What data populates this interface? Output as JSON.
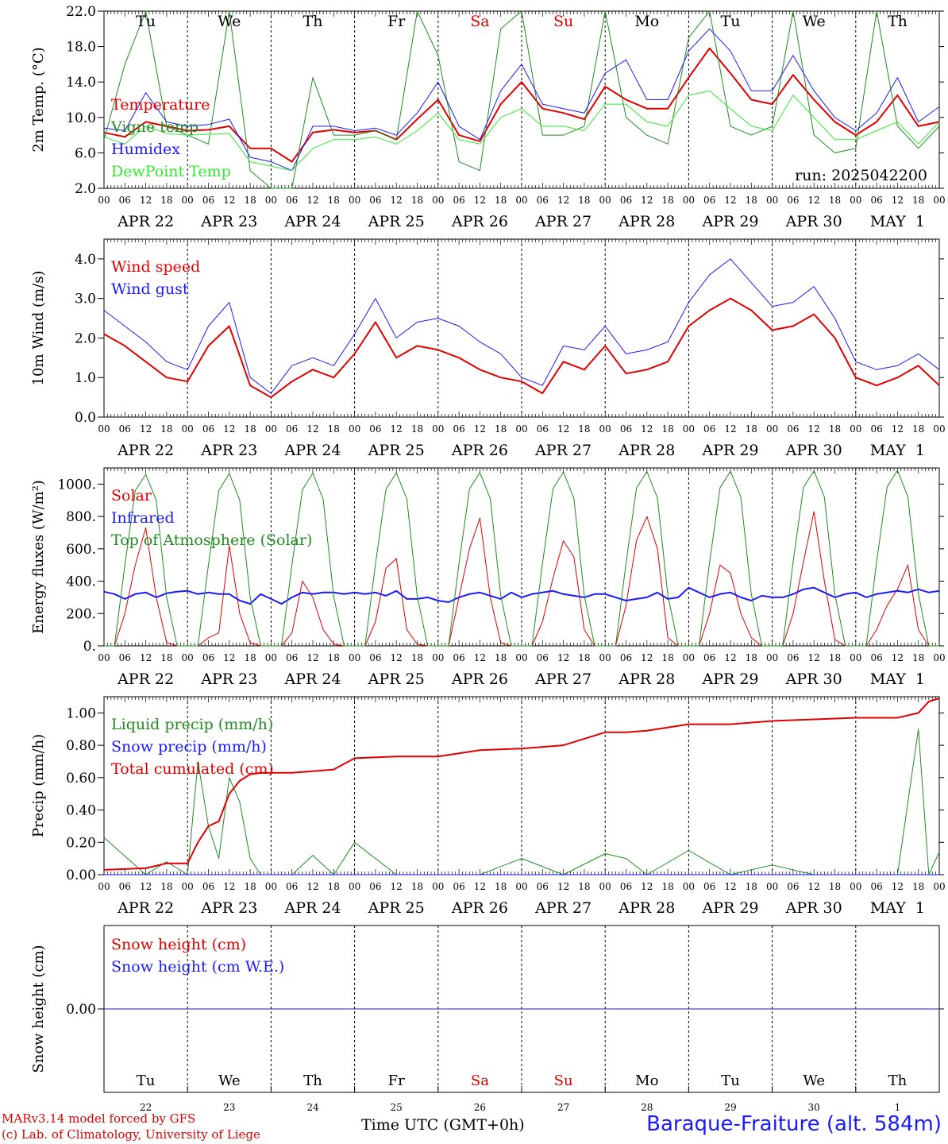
{
  "colors": {
    "red": "#e00000",
    "green": "#228b22",
    "blue": "#1a1aff",
    "lightgreen": "#33e833",
    "black": "#000000"
  },
  "hour_ticks": [
    "00",
    "06",
    "12",
    "18"
  ],
  "date_labels": [
    "APR 22",
    "APR 23",
    "APR 24",
    "APR 25",
    "APR 26",
    "APR 27",
    "APR 28",
    "APR 29",
    "APR 30",
    "MAY  1"
  ],
  "weekdays": [
    {
      "label": "Tu",
      "weekend": false
    },
    {
      "label": "We",
      "weekend": false
    },
    {
      "label": "Th",
      "weekend": false
    },
    {
      "label": "Fr",
      "weekend": false
    },
    {
      "label": "Sa",
      "weekend": true
    },
    {
      "label": "Su",
      "weekend": true
    },
    {
      "label": "Mo",
      "weekend": false
    },
    {
      "label": "Tu",
      "weekend": false
    },
    {
      "label": "We",
      "weekend": false
    },
    {
      "label": "Th",
      "weekend": false
    }
  ],
  "day_numbers": [
    "22",
    "23",
    "24",
    "25",
    "26",
    "27",
    "28",
    "29",
    "30",
    "1"
  ],
  "footer": {
    "credit_line1": "MARv3.14 model forced by GFS",
    "credit_line2": "(c) Lab. of Climatology, University of Liege",
    "time_label": "Time UTC (GMT+0h)",
    "station": "Baraque-Fraiture (alt. 584m)"
  },
  "chart_data": [
    {
      "type": "line",
      "ylabel": "2m Temp. (°C)",
      "ylim": [
        2.0,
        22.0
      ],
      "yticks": [
        "2.0",
        "6.0",
        "10.0",
        "14.0",
        "18.0",
        "22.0"
      ],
      "ytick_values": [
        2,
        6,
        10,
        14,
        18,
        22
      ],
      "annotation": "run: 2025042200",
      "x_hours": [
        0,
        6,
        12,
        18,
        24,
        30,
        36,
        42,
        48,
        54,
        60,
        66,
        72,
        78,
        84,
        90,
        96,
        102,
        108,
        114,
        120,
        126,
        132,
        138,
        144,
        150,
        156,
        162,
        168,
        174,
        180,
        186,
        192,
        198,
        204,
        210,
        216,
        222,
        228,
        234,
        240
      ],
      "series": [
        {
          "name": "Temperature",
          "color": "#e00000",
          "width": 2,
          "values": [
            8.3,
            7.8,
            9.5,
            9.0,
            8.5,
            8.6,
            9.0,
            6.5,
            6.5,
            5.0,
            8.3,
            8.6,
            8.3,
            8.5,
            7.5,
            9.8,
            12.0,
            8.0,
            7.3,
            11.5,
            14.0,
            11.0,
            10.5,
            9.8,
            13.5,
            12.0,
            11.0,
            11.0,
            14.5,
            17.8,
            15.0,
            12.0,
            11.5,
            14.8,
            12.0,
            9.5,
            8.0,
            9.5,
            12.5,
            9.0,
            9.5
          ]
        },
        {
          "name": "Vigne temp",
          "color": "#228b22",
          "width": 1,
          "values": [
            7.5,
            16.0,
            22.0,
            9.0,
            8.0,
            7.0,
            22.0,
            4.0,
            2.0,
            2.0,
            14.5,
            8.0,
            8.0,
            8.5,
            7.5,
            22.0,
            17.0,
            5.0,
            4.0,
            20.0,
            22.0,
            8.0,
            8.0,
            9.0,
            22.0,
            10.0,
            8.0,
            7.0,
            19.0,
            22.0,
            9.0,
            8.0,
            9.0,
            22.0,
            8.0,
            6.0,
            6.5,
            22.0,
            9.0,
            6.5,
            9.0
          ]
        },
        {
          "name": "Humidex",
          "color": "#1a1aff",
          "width": 1,
          "values": [
            8.8,
            8.5,
            12.8,
            9.5,
            9.0,
            9.2,
            9.8,
            5.5,
            5.0,
            4.0,
            9.0,
            9.0,
            8.5,
            8.8,
            8.0,
            10.5,
            14.0,
            9.0,
            7.5,
            13.0,
            16.0,
            11.5,
            11.0,
            10.5,
            15.0,
            16.5,
            12.0,
            12.0,
            17.5,
            20.0,
            17.5,
            13.0,
            13.0,
            17.0,
            13.0,
            10.0,
            8.5,
            10.5,
            14.5,
            9.5,
            11.2
          ]
        },
        {
          "name": "DewPoint Temp",
          "color": "#33e833",
          "width": 1,
          "values": [
            7.8,
            7.0,
            9.0,
            8.2,
            8.0,
            8.1,
            8.2,
            5.0,
            4.5,
            4.0,
            6.5,
            7.5,
            7.5,
            7.8,
            7.0,
            8.5,
            10.5,
            7.5,
            7.0,
            10.0,
            11.0,
            9.0,
            9.0,
            8.5,
            11.5,
            11.5,
            9.5,
            9.0,
            12.5,
            13.0,
            11.0,
            9.0,
            8.5,
            12.5,
            10.0,
            7.5,
            7.5,
            8.5,
            9.5,
            7.0,
            9.5
          ]
        }
      ]
    },
    {
      "type": "line",
      "ylabel": "10m Wind (m/s)",
      "ylim": [
        0.0,
        4.5
      ],
      "yticks": [
        "0.0",
        "1.0",
        "2.0",
        "3.0",
        "4.0"
      ],
      "ytick_values": [
        0,
        1,
        2,
        3,
        4
      ],
      "x_hours": [
        0,
        6,
        12,
        18,
        24,
        30,
        36,
        42,
        48,
        54,
        60,
        66,
        72,
        78,
        84,
        90,
        96,
        102,
        108,
        114,
        120,
        126,
        132,
        138,
        144,
        150,
        156,
        162,
        168,
        174,
        180,
        186,
        192,
        198,
        204,
        210,
        216,
        222,
        228,
        234,
        240
      ],
      "series": [
        {
          "name": "Wind speed",
          "color": "#e00000",
          "width": 2,
          "values": [
            2.1,
            1.8,
            1.4,
            1.0,
            0.9,
            1.8,
            2.3,
            0.8,
            0.5,
            0.9,
            1.2,
            1.0,
            1.6,
            2.4,
            1.5,
            1.8,
            1.7,
            1.5,
            1.2,
            1.0,
            0.9,
            0.6,
            1.4,
            1.2,
            1.8,
            1.1,
            1.2,
            1.4,
            2.3,
            2.7,
            3.0,
            2.7,
            2.2,
            2.3,
            2.6,
            2.0,
            1.0,
            0.8,
            1.0,
            1.3,
            0.8
          ]
        },
        {
          "name": "Wind gust",
          "color": "#1a1aff",
          "width": 1,
          "values": [
            2.7,
            2.3,
            1.9,
            1.4,
            1.2,
            2.3,
            2.9,
            1.0,
            0.6,
            1.3,
            1.5,
            1.3,
            2.1,
            3.0,
            2.0,
            2.4,
            2.5,
            2.3,
            1.9,
            1.6,
            1.0,
            0.8,
            1.8,
            1.7,
            2.3,
            1.6,
            1.7,
            1.9,
            2.9,
            3.6,
            4.0,
            3.4,
            2.8,
            2.9,
            3.3,
            2.5,
            1.4,
            1.2,
            1.3,
            1.6,
            1.2
          ]
        }
      ]
    },
    {
      "type": "line",
      "ylabel": "Energy fluxes (W/m²)",
      "ylim": [
        0,
        1100
      ],
      "yticks": [
        "0.",
        "200.",
        "400.",
        "600.",
        "800.",
        "1000."
      ],
      "ytick_values": [
        0,
        200,
        400,
        600,
        800,
        1000
      ],
      "x_hours": [
        0,
        3,
        6,
        9,
        12,
        15,
        18,
        21,
        24,
        27,
        30,
        33,
        36,
        39,
        42,
        45,
        48,
        51,
        54,
        57,
        60,
        63,
        66,
        69,
        72,
        75,
        78,
        81,
        84,
        87,
        90,
        93,
        96,
        99,
        102,
        105,
        108,
        111,
        114,
        117,
        120,
        123,
        126,
        129,
        132,
        135,
        138,
        141,
        144,
        147,
        150,
        153,
        156,
        159,
        162,
        165,
        168,
        171,
        174,
        177,
        180,
        183,
        186,
        189,
        192,
        195,
        198,
        201,
        204,
        207,
        210,
        213,
        216,
        219,
        222,
        225,
        228,
        231,
        234,
        237,
        240
      ],
      "series": [
        {
          "name": "Solar",
          "color": "#e00000",
          "width": 1,
          "values": [
            0,
            0,
            200,
            500,
            730,
            300,
            20,
            0,
            0,
            0,
            50,
            80,
            620,
            200,
            20,
            0,
            0,
            0,
            80,
            400,
            300,
            100,
            10,
            0,
            0,
            0,
            150,
            480,
            540,
            100,
            10,
            0,
            0,
            0,
            300,
            600,
            790,
            300,
            20,
            0,
            0,
            0,
            150,
            420,
            650,
            550,
            100,
            0,
            0,
            0,
            250,
            650,
            800,
            600,
            50,
            0,
            0,
            0,
            200,
            500,
            450,
            200,
            50,
            0,
            0,
            0,
            200,
            520,
            830,
            400,
            40,
            0,
            0,
            0,
            100,
            250,
            350,
            500,
            100,
            0,
            0
          ]
        },
        {
          "name": "Infrared",
          "color": "#1a1aff",
          "width": 2,
          "values": [
            335,
            320,
            290,
            320,
            330,
            300,
            325,
            335,
            340,
            320,
            330,
            320,
            320,
            280,
            260,
            320,
            290,
            260,
            300,
            330,
            320,
            330,
            330,
            320,
            330,
            320,
            330,
            310,
            340,
            290,
            290,
            300,
            280,
            270,
            300,
            320,
            330,
            310,
            290,
            330,
            300,
            320,
            330,
            340,
            320,
            310,
            300,
            320,
            320,
            300,
            280,
            290,
            300,
            330,
            290,
            300,
            360,
            330,
            300,
            320,
            330,
            300,
            280,
            310,
            300,
            300,
            320,
            350,
            360,
            330,
            300,
            320,
            330,
            300,
            320,
            330,
            340,
            330,
            350,
            330,
            340
          ]
        },
        {
          "name": "Top of Atmosphere (Solar)",
          "color": "#228b22",
          "width": 1,
          "values": [
            0,
            0,
            500,
            960,
            1060,
            900,
            300,
            0,
            0,
            0,
            500,
            960,
            1065,
            900,
            300,
            0,
            0,
            0,
            500,
            965,
            1068,
            905,
            305,
            0,
            0,
            0,
            505,
            968,
            1070,
            908,
            308,
            0,
            0,
            0,
            508,
            970,
            1072,
            910,
            310,
            0,
            0,
            0,
            510,
            972,
            1075,
            912,
            312,
            0,
            0,
            0,
            512,
            975,
            1078,
            915,
            315,
            0,
            0,
            0,
            515,
            978,
            1080,
            918,
            318,
            0,
            0,
            0,
            518,
            980,
            1083,
            920,
            320,
            0,
            0,
            0,
            520,
            983,
            1086,
            922,
            322,
            0,
            0
          ]
        }
      ]
    },
    {
      "type": "line",
      "ylabel": "Precip (mm/h)",
      "ylim": [
        0.0,
        1.1
      ],
      "yticks": [
        "0.00",
        "0.20",
        "0.40",
        "0.60",
        "0.80",
        "1.00"
      ],
      "ytick_values": [
        0,
        0.2,
        0.4,
        0.6,
        0.8,
        1.0
      ],
      "x_hours": [
        0,
        12,
        18,
        24,
        27,
        30,
        33,
        36,
        39,
        42,
        45,
        48,
        54,
        60,
        66,
        72,
        84,
        96,
        108,
        120,
        132,
        144,
        150,
        156,
        168,
        180,
        192,
        204,
        216,
        228,
        234,
        237,
        240
      ],
      "series": [
        {
          "name": "Liquid precip (mm/h)",
          "color": "#228b22",
          "width": 1,
          "values": [
            0.23,
            0.0,
            0.08,
            0.0,
            0.7,
            0.3,
            0.1,
            0.6,
            0.45,
            0.1,
            0.0,
            0.0,
            0.0,
            0.12,
            0.0,
            0.2,
            0.0,
            0.0,
            0.0,
            0.1,
            0.0,
            0.13,
            0.1,
            0.0,
            0.15,
            0.0,
            0.06,
            0.0,
            0.0,
            0.0,
            0.9,
            0.0,
            0.14
          ]
        },
        {
          "name": "Snow precip (mm/h)",
          "color": "#1a1aff",
          "width": 1,
          "values": [
            0,
            0,
            0,
            0,
            0,
            0,
            0,
            0,
            0,
            0,
            0,
            0,
            0,
            0,
            0,
            0,
            0,
            0,
            0,
            0,
            0,
            0,
            0,
            0,
            0,
            0,
            0,
            0,
            0,
            0,
            0,
            0,
            0
          ]
        },
        {
          "name": "Total cumulated (cm)",
          "color": "#e00000",
          "width": 2,
          "values": [
            0.03,
            0.04,
            0.07,
            0.07,
            0.2,
            0.3,
            0.33,
            0.5,
            0.58,
            0.62,
            0.63,
            0.63,
            0.63,
            0.64,
            0.65,
            0.72,
            0.73,
            0.73,
            0.77,
            0.78,
            0.8,
            0.88,
            0.88,
            0.89,
            0.93,
            0.93,
            0.95,
            0.96,
            0.97,
            0.97,
            1.0,
            1.07,
            1.09
          ]
        }
      ]
    },
    {
      "type": "line",
      "ylabel": "Snow height (cm)",
      "ylim": [
        -1.0,
        1.0
      ],
      "yticks": [
        "0.00"
      ],
      "ytick_values": [
        0
      ],
      "x_hours": [
        0,
        240
      ],
      "series": [
        {
          "name": "Snow height (cm)",
          "color": "#e00000",
          "width": 1,
          "values": [
            0,
            0
          ]
        },
        {
          "name": "Snow height (cm W.E.)",
          "color": "#1a1aff",
          "width": 1,
          "values": [
            0,
            0
          ]
        }
      ]
    }
  ]
}
